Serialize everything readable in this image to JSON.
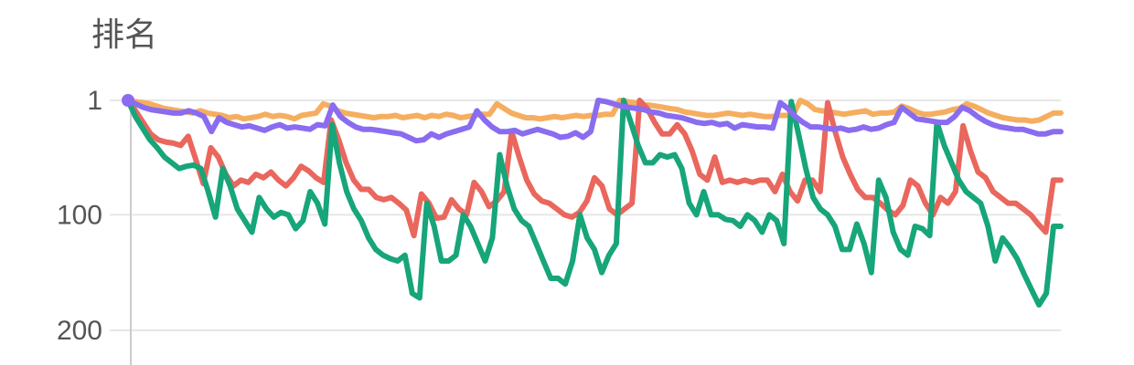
{
  "chart_data": {
    "type": "line",
    "ylabel": "排名",
    "y_axis": {
      "reversed": true,
      "range": [
        1,
        200
      ],
      "ticks": [
        1,
        100,
        200
      ]
    },
    "grid": true,
    "legend": "none",
    "series": [
      {
        "color": "#f5ae5f",
        "values": [
          1,
          2,
          3,
          4,
          6,
          8,
          9,
          10,
          11,
          12,
          10,
          12,
          13,
          14,
          16,
          15,
          17,
          16,
          15,
          13,
          15,
          14,
          15,
          17,
          14,
          13,
          12,
          4,
          6,
          10,
          12,
          13,
          14,
          15,
          16,
          15,
          15,
          14,
          16,
          15,
          14,
          16,
          14,
          15,
          13,
          14,
          16,
          15,
          14,
          13,
          13,
          4,
          8,
          12,
          14,
          16,
          16,
          17,
          16,
          15,
          16,
          15,
          14,
          15,
          14,
          14,
          13,
          13,
          1,
          2,
          3,
          5,
          5,
          6,
          7,
          8,
          9,
          11,
          12,
          13,
          14,
          14,
          13,
          12,
          13,
          14,
          13,
          14,
          15,
          15,
          14,
          14,
          13,
          1,
          4,
          9,
          10,
          11,
          12,
          13,
          12,
          11,
          10,
          13,
          12,
          12,
          11,
          6,
          8,
          11,
          13,
          13,
          12,
          11,
          9,
          8,
          4,
          6,
          9,
          12,
          14,
          16,
          17,
          18,
          18,
          19,
          18,
          15,
          12,
          12
        ]
      },
      {
        "color": "#e9675d",
        "values": [
          1,
          10,
          20,
          30,
          35,
          37,
          38,
          40,
          32,
          52,
          73,
          42,
          50,
          65,
          75,
          70,
          72,
          65,
          68,
          63,
          70,
          75,
          68,
          58,
          62,
          68,
          72,
          18,
          35,
          55,
          70,
          78,
          78,
          85,
          87,
          85,
          90,
          96,
          118,
          82,
          90,
          103,
          102,
          87,
          95,
          100,
          72,
          80,
          93,
          88,
          80,
          28,
          50,
          70,
          82,
          88,
          90,
          95,
          100,
          102,
          98,
          88,
          68,
          75,
          95,
          100,
          95,
          90,
          1,
          8,
          20,
          30,
          30,
          22,
          30,
          45,
          65,
          70,
          50,
          72,
          70,
          72,
          70,
          72,
          70,
          70,
          80,
          65,
          80,
          88,
          70,
          70,
          80,
          3,
          28,
          50,
          65,
          78,
          85,
          85,
          90,
          96,
          100,
          92,
          70,
          75,
          90,
          100,
          85,
          90,
          80,
          23,
          45,
          63,
          68,
          80,
          85,
          90,
          90,
          95,
          100,
          108,
          115,
          70,
          70
        ]
      },
      {
        "color": "#17a57a",
        "values": [
          1,
          15,
          25,
          35,
          42,
          50,
          55,
          60,
          58,
          57,
          60,
          80,
          102,
          60,
          75,
          95,
          105,
          115,
          85,
          95,
          102,
          98,
          100,
          112,
          105,
          80,
          90,
          108,
          22,
          55,
          80,
          95,
          105,
          120,
          130,
          135,
          138,
          140,
          135,
          168,
          172,
          90,
          110,
          140,
          140,
          135,
          100,
          110,
          125,
          140,
          120,
          48,
          75,
          95,
          105,
          110,
          125,
          140,
          155,
          155,
          160,
          140,
          100,
          120,
          130,
          150,
          135,
          125,
          1,
          20,
          40,
          55,
          55,
          48,
          50,
          48,
          60,
          90,
          100,
          80,
          100,
          100,
          104,
          105,
          110,
          100,
          105,
          115,
          100,
          105,
          125,
          2,
          30,
          60,
          85,
          95,
          100,
          110,
          130,
          130,
          108,
          125,
          150,
          70,
          85,
          115,
          130,
          135,
          110,
          112,
          118,
          20,
          40,
          55,
          70,
          80,
          85,
          90,
          110,
          140,
          120,
          128,
          138,
          152,
          165,
          178,
          168,
          110,
          110
        ]
      },
      {
        "color": "#8a6cf0",
        "values": [
          1,
          4,
          7,
          9,
          10,
          11,
          12,
          12,
          10,
          12,
          15,
          28,
          16,
          20,
          22,
          24,
          23,
          25,
          27,
          24,
          22,
          25,
          24,
          25,
          26,
          22,
          23,
          5,
          15,
          20,
          24,
          26,
          26,
          27,
          28,
          29,
          30,
          33,
          36,
          35,
          30,
          33,
          30,
          28,
          26,
          24,
          10,
          18,
          24,
          28,
          28,
          27,
          30,
          28,
          26,
          28,
          30,
          33,
          32,
          29,
          33,
          28,
          1,
          2,
          4,
          6,
          7,
          8,
          9,
          11,
          12,
          14,
          15,
          16,
          18,
          20,
          21,
          20,
          22,
          21,
          25,
          22,
          23,
          24,
          24,
          25,
          3,
          8,
          15,
          20,
          24,
          24,
          25,
          26,
          25,
          27,
          26,
          24,
          26,
          25,
          22,
          20,
          7,
          12,
          17,
          18,
          19,
          20,
          20,
          15,
          7,
          10,
          15,
          19,
          22,
          24,
          25,
          26,
          26,
          28,
          30,
          30,
          28,
          28
        ]
      }
    ]
  }
}
